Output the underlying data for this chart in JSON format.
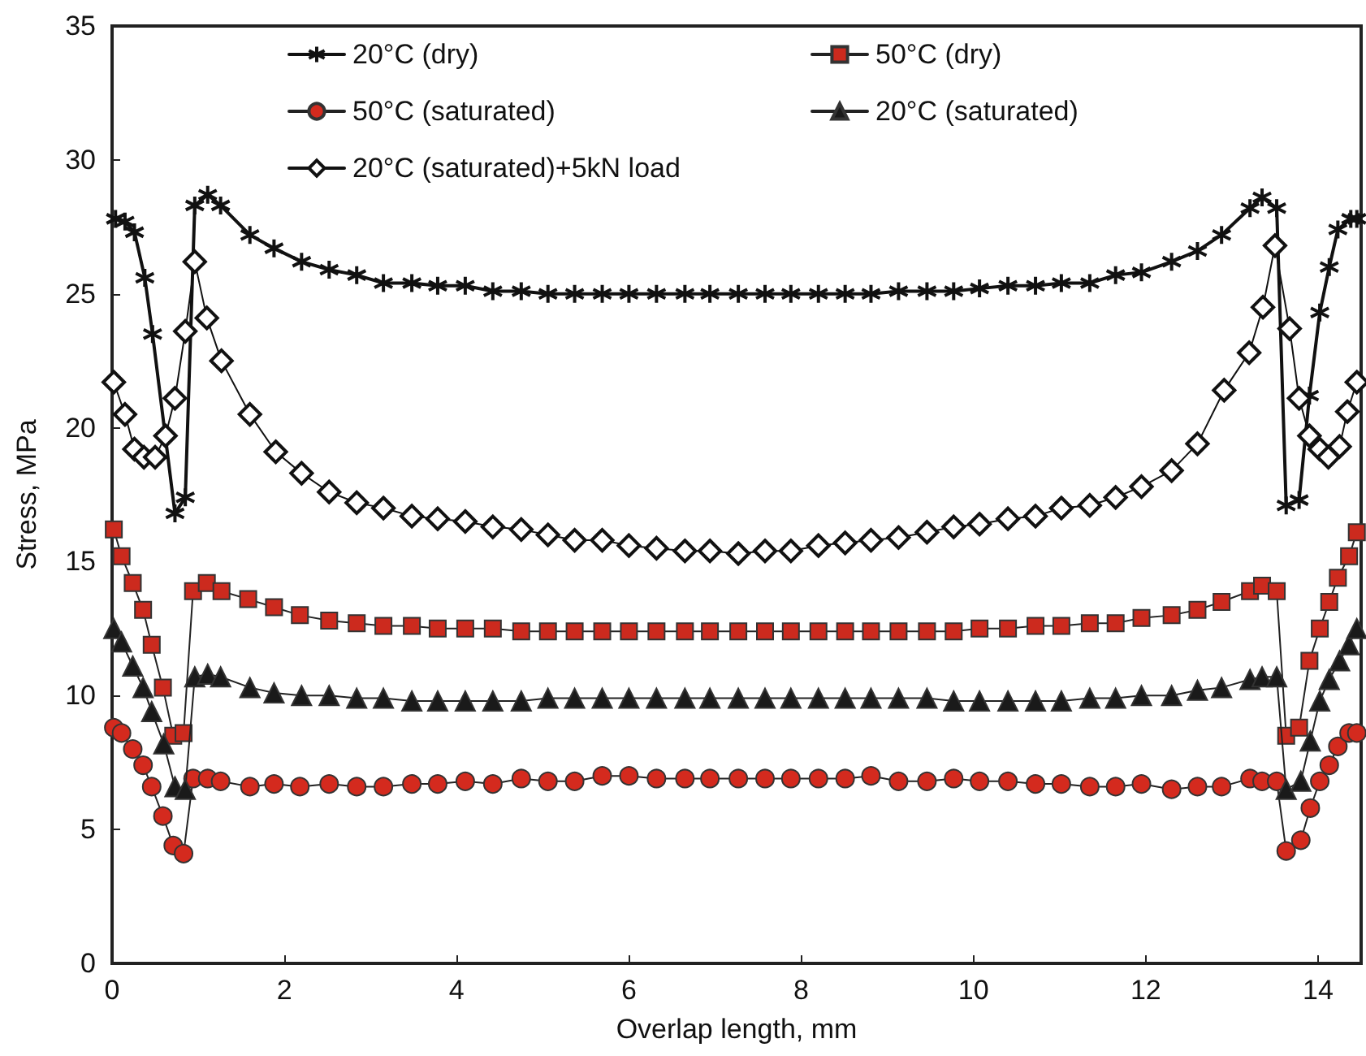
{
  "chart_data": {
    "type": "line",
    "xlabel": "Overlap length, mm",
    "ylabel": "Stress, MPa",
    "xlim": [
      0,
      14.5
    ],
    "xticks": [
      0,
      2,
      4,
      6,
      8,
      10,
      12,
      14
    ],
    "ylim": [
      0,
      35
    ],
    "yticks": [
      0,
      5,
      10,
      15,
      20,
      25,
      30,
      35
    ],
    "grid": false,
    "legend": "top",
    "line_style": "solid",
    "series": [
      {
        "name": "20°C (dry)",
        "color": "#111111",
        "marker": "cross",
        "x": [
          0.04,
          0.15,
          0.26,
          0.38,
          0.47,
          0.73,
          0.85,
          0.96,
          1.11,
          1.26,
          1.6,
          1.88,
          2.2,
          2.52,
          2.84,
          3.15,
          3.48,
          3.78,
          4.1,
          4.42,
          4.75,
          5.06,
          5.37,
          5.69,
          6.0,
          6.32,
          6.65,
          6.94,
          7.27,
          7.58,
          7.88,
          8.2,
          8.51,
          8.81,
          9.13,
          9.46,
          9.77,
          10.07,
          10.4,
          10.72,
          11.02,
          11.35,
          11.65,
          11.95,
          12.3,
          12.6,
          12.88,
          13.21,
          13.35,
          13.52,
          13.63,
          13.78,
          13.9,
          14.02,
          14.13,
          14.23,
          14.38,
          14.45
        ],
        "values": [
          27.8,
          27.7,
          27.3,
          25.6,
          23.5,
          16.8,
          17.4,
          28.3,
          28.7,
          28.3,
          27.2,
          26.7,
          26.2,
          25.9,
          25.7,
          25.4,
          25.4,
          25.3,
          25.3,
          25.1,
          25.1,
          25.0,
          25.0,
          25.0,
          25.0,
          25.0,
          25.0,
          25.0,
          25.0,
          25.0,
          25.0,
          25.0,
          25.0,
          25.0,
          25.1,
          25.1,
          25.1,
          25.2,
          25.3,
          25.3,
          25.4,
          25.4,
          25.7,
          25.8,
          26.2,
          26.6,
          27.2,
          28.2,
          28.6,
          28.2,
          17.1,
          17.3,
          21.2,
          24.3,
          26.0,
          27.4,
          27.8,
          27.8
        ]
      },
      {
        "name": "50°C (dry)",
        "color": "#cc2a1e",
        "marker": "square",
        "x": [
          0.02,
          0.11,
          0.24,
          0.36,
          0.46,
          0.59,
          0.71,
          0.83,
          0.94,
          1.1,
          1.27,
          1.58,
          1.88,
          2.18,
          2.52,
          2.84,
          3.15,
          3.48,
          3.78,
          4.1,
          4.42,
          4.75,
          5.06,
          5.37,
          5.69,
          6.0,
          6.32,
          6.65,
          6.94,
          7.27,
          7.58,
          7.88,
          8.2,
          8.51,
          8.81,
          9.13,
          9.46,
          9.77,
          10.07,
          10.4,
          10.72,
          11.02,
          11.35,
          11.65,
          11.95,
          12.3,
          12.6,
          12.88,
          13.21,
          13.35,
          13.52,
          13.63,
          13.78,
          13.9,
          14.02,
          14.13,
          14.23,
          14.36,
          14.45
        ],
        "values": [
          16.2,
          15.2,
          14.2,
          13.2,
          11.9,
          10.3,
          8.5,
          8.6,
          13.9,
          14.2,
          13.9,
          13.6,
          13.3,
          13.0,
          12.8,
          12.7,
          12.6,
          12.6,
          12.5,
          12.5,
          12.5,
          12.4,
          12.4,
          12.4,
          12.4,
          12.4,
          12.4,
          12.4,
          12.4,
          12.4,
          12.4,
          12.4,
          12.4,
          12.4,
          12.4,
          12.4,
          12.4,
          12.4,
          12.5,
          12.5,
          12.6,
          12.6,
          12.7,
          12.7,
          12.9,
          13.0,
          13.2,
          13.5,
          13.9,
          14.1,
          13.9,
          8.5,
          8.8,
          11.3,
          12.5,
          13.5,
          14.4,
          15.2,
          16.1
        ]
      },
      {
        "name": "50°C (saturated)",
        "color": "#d42a1e",
        "marker": "circle",
        "x": [
          0.02,
          0.11,
          0.24,
          0.36,
          0.46,
          0.59,
          0.71,
          0.83,
          0.94,
          1.11,
          1.26,
          1.6,
          1.88,
          2.18,
          2.52,
          2.84,
          3.15,
          3.48,
          3.78,
          4.1,
          4.42,
          4.75,
          5.06,
          5.37,
          5.69,
          6.0,
          6.32,
          6.65,
          6.94,
          7.27,
          7.58,
          7.88,
          8.2,
          8.51,
          8.81,
          9.13,
          9.46,
          9.77,
          10.07,
          10.4,
          10.72,
          11.02,
          11.35,
          11.65,
          11.95,
          12.3,
          12.6,
          12.88,
          13.21,
          13.35,
          13.52,
          13.63,
          13.8,
          13.91,
          14.02,
          14.13,
          14.23,
          14.36,
          14.45
        ],
        "values": [
          8.8,
          8.6,
          8.0,
          7.4,
          6.6,
          5.5,
          4.4,
          4.1,
          6.9,
          6.9,
          6.8,
          6.6,
          6.7,
          6.6,
          6.7,
          6.6,
          6.6,
          6.7,
          6.7,
          6.8,
          6.7,
          6.9,
          6.8,
          6.8,
          7.0,
          7.0,
          6.9,
          6.9,
          6.9,
          6.9,
          6.9,
          6.9,
          6.9,
          6.9,
          7.0,
          6.8,
          6.8,
          6.9,
          6.8,
          6.8,
          6.7,
          6.7,
          6.6,
          6.6,
          6.7,
          6.5,
          6.6,
          6.6,
          6.9,
          6.8,
          6.8,
          4.2,
          4.6,
          5.8,
          6.8,
          7.4,
          8.1,
          8.6,
          8.6
        ]
      },
      {
        "name": "20°C (saturated)",
        "color": "#1a1a1a",
        "marker": "triangle",
        "x": [
          0.02,
          0.11,
          0.24,
          0.36,
          0.46,
          0.6,
          0.73,
          0.85,
          0.96,
          1.11,
          1.26,
          1.6,
          1.88,
          2.2,
          2.52,
          2.84,
          3.15,
          3.48,
          3.78,
          4.1,
          4.42,
          4.75,
          5.06,
          5.37,
          5.69,
          6.0,
          6.32,
          6.65,
          6.94,
          7.27,
          7.58,
          7.88,
          8.2,
          8.51,
          8.81,
          9.13,
          9.46,
          9.77,
          10.07,
          10.4,
          10.72,
          11.02,
          11.35,
          11.65,
          11.95,
          12.3,
          12.6,
          12.88,
          13.21,
          13.35,
          13.52,
          13.63,
          13.8,
          13.91,
          14.02,
          14.13,
          14.25,
          14.36,
          14.45
        ],
        "values": [
          12.5,
          12.0,
          11.1,
          10.3,
          9.4,
          8.2,
          6.6,
          6.5,
          10.7,
          10.8,
          10.7,
          10.3,
          10.1,
          10.0,
          10.0,
          9.9,
          9.9,
          9.8,
          9.8,
          9.8,
          9.8,
          9.8,
          9.9,
          9.9,
          9.9,
          9.9,
          9.9,
          9.9,
          9.9,
          9.9,
          9.9,
          9.9,
          9.9,
          9.9,
          9.9,
          9.9,
          9.9,
          9.8,
          9.8,
          9.8,
          9.8,
          9.8,
          9.9,
          9.9,
          10.0,
          10.0,
          10.2,
          10.3,
          10.6,
          10.7,
          10.7,
          6.5,
          6.8,
          8.3,
          9.8,
          10.6,
          11.3,
          11.9,
          12.5
        ]
      },
      {
        "name": "20°C (saturated)+5kN load",
        "color": "#111111",
        "marker": "diamond",
        "x": [
          0.02,
          0.15,
          0.26,
          0.37,
          0.5,
          0.62,
          0.73,
          0.85,
          0.96,
          1.1,
          1.27,
          1.6,
          1.9,
          2.2,
          2.52,
          2.84,
          3.15,
          3.48,
          3.78,
          4.1,
          4.42,
          4.75,
          5.06,
          5.37,
          5.69,
          6.0,
          6.32,
          6.65,
          6.94,
          7.27,
          7.58,
          7.88,
          8.2,
          8.51,
          8.81,
          9.13,
          9.46,
          9.77,
          10.07,
          10.4,
          10.72,
          11.02,
          11.35,
          11.65,
          11.95,
          12.3,
          12.6,
          12.91,
          13.2,
          13.36,
          13.5,
          13.67,
          13.78,
          13.9,
          14.02,
          14.12,
          14.25,
          14.34,
          14.45
        ],
        "values": [
          21.7,
          20.5,
          19.2,
          18.9,
          18.9,
          19.7,
          21.1,
          23.6,
          26.2,
          24.1,
          22.5,
          20.5,
          19.1,
          18.3,
          17.6,
          17.2,
          17.0,
          16.7,
          16.6,
          16.5,
          16.3,
          16.2,
          16.0,
          15.8,
          15.8,
          15.6,
          15.5,
          15.4,
          15.4,
          15.3,
          15.4,
          15.4,
          15.6,
          15.7,
          15.8,
          15.9,
          16.1,
          16.3,
          16.4,
          16.6,
          16.7,
          17.0,
          17.1,
          17.4,
          17.8,
          18.4,
          19.4,
          21.4,
          22.8,
          24.5,
          26.8,
          23.7,
          21.1,
          19.7,
          19.2,
          18.9,
          19.3,
          20.6,
          21.7
        ]
      }
    ]
  }
}
